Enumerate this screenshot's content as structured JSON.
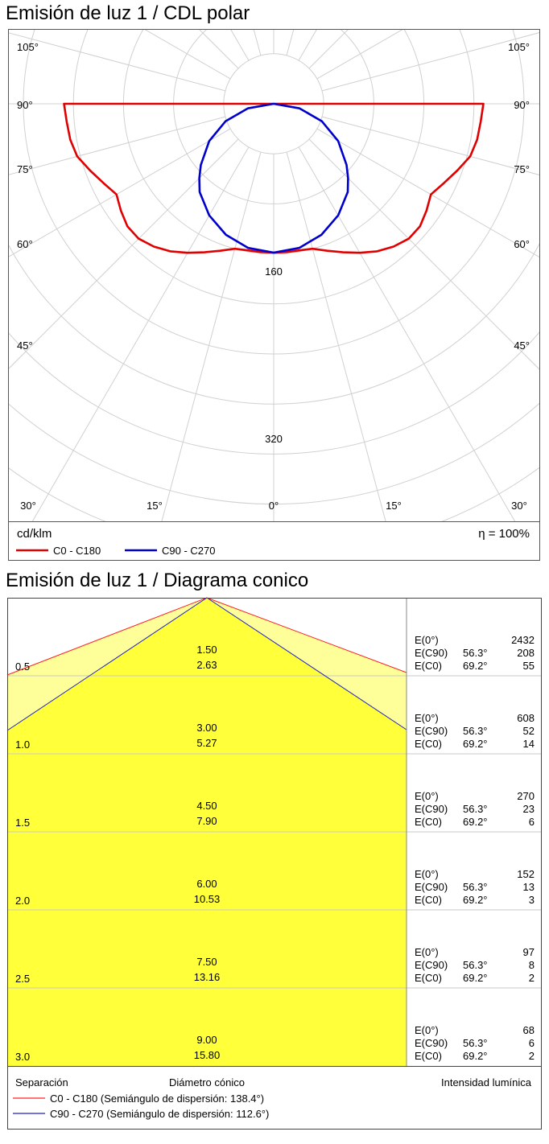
{
  "polar": {
    "title": "Emisión de luz 1 / CDL polar",
    "unit": "cd/klm",
    "efficiency": "η = 100%",
    "angle_labels": [
      "105°",
      "90°",
      "75°",
      "60°",
      "45°",
      "30°",
      "15°",
      "0°"
    ],
    "ring_labels": [
      "160",
      "320"
    ],
    "legend": [
      {
        "label": "C0 - C180",
        "color": "#e00000"
      },
      {
        "label": "C90 - C270",
        "color": "#0000cc"
      }
    ]
  },
  "cone": {
    "title": "Emisión de luz 1 / Diagrama conico",
    "footer": {
      "col1": "Separación",
      "col2": "Diámetro cónico",
      "col3": "Intensidad lumínica"
    },
    "legend": [
      {
        "label": "C0 - C180 (Semiángulo de dispersión: 138.4°)",
        "color": "#ff2020"
      },
      {
        "label": "C90 - C270 (Semiángulo de dispersión: 112.6°)",
        "color": "#2020cc"
      }
    ],
    "rows": [
      {
        "sep": "0.5",
        "d1": "1.50",
        "d2": "2.63",
        "e0_label": "E(0°)",
        "e0": "2432",
        "e90_label": "E(C90)",
        "e90_ang": "56.3°",
        "e90": "208",
        "ec0_label": "E(C0)",
        "ec0_ang": "69.2°",
        "ec0": "55"
      },
      {
        "sep": "1.0",
        "d1": "3.00",
        "d2": "5.27",
        "e0_label": "E(0°)",
        "e0": "608",
        "e90_label": "E(C90)",
        "e90_ang": "56.3°",
        "e90": "52",
        "ec0_label": "E(C0)",
        "ec0_ang": "69.2°",
        "ec0": "14"
      },
      {
        "sep": "1.5",
        "d1": "4.50",
        "d2": "7.90",
        "e0_label": "E(0°)",
        "e0": "270",
        "e90_label": "E(C90)",
        "e90_ang": "56.3°",
        "e90": "23",
        "ec0_label": "E(C0)",
        "ec0_ang": "69.2°",
        "ec0": "6"
      },
      {
        "sep": "2.0",
        "d1": "6.00",
        "d2": "10.53",
        "e0_label": "E(0°)",
        "e0": "152",
        "e90_label": "E(C90)",
        "e90_ang": "56.3°",
        "e90": "13",
        "ec0_label": "E(C0)",
        "ec0_ang": "69.2°",
        "ec0": "3"
      },
      {
        "sep": "2.5",
        "d1": "7.50",
        "d2": "13.16",
        "e0_label": "E(0°)",
        "e0": "97",
        "e90_label": "E(C90)",
        "e90_ang": "56.3°",
        "e90": "8",
        "ec0_label": "E(C0)",
        "ec0_ang": "69.2°",
        "ec0": "2"
      },
      {
        "sep": "3.0",
        "d1": "9.00",
        "d2": "15.80",
        "e0_label": "E(0°)",
        "e0": "68",
        "e90_label": "E(C90)",
        "e90_ang": "56.3°",
        "e90": "6",
        "ec0_label": "E(C0)",
        "ec0_ang": "69.2°",
        "ec0": "2"
      }
    ]
  },
  "chart_data": [
    {
      "type": "polar",
      "title": "Emisión de luz 1 / CDL polar",
      "r_unit": "cd/klm",
      "r_ticks": [
        160,
        320
      ],
      "r_max": 400,
      "angle_ticks_deg": [
        0,
        15,
        30,
        45,
        60,
        75,
        90,
        105
      ],
      "series": [
        {
          "name": "C0 - C180",
          "color": "#e00000",
          "angles_deg": [
            0,
            5,
            10,
            15,
            20,
            25,
            30,
            35,
            40,
            45,
            50,
            55,
            60,
            65,
            70,
            75,
            80,
            85,
            90
          ],
          "values": [
            238,
            238,
            238,
            240,
            250,
            262,
            275,
            288,
            298,
            305,
            305,
            298,
            290,
            300,
            312,
            325,
            330,
            332,
            335
          ]
        },
        {
          "name": "C90 - C270",
          "color": "#0000cc",
          "angles_deg": [
            0,
            10,
            20,
            30,
            40,
            45,
            50,
            60,
            70,
            80,
            90
          ],
          "values": [
            238,
            234,
            223,
            206,
            184,
            168,
            152,
            119,
            82,
            42,
            0
          ]
        }
      ]
    },
    {
      "type": "table",
      "title": "Emisión de luz 1 / Diagrama conico",
      "columns": [
        "Separación",
        "Diámetro cónico C90",
        "Diámetro cónico C0",
        "E(0°)",
        "E(C90) 56.3°",
        "E(C0) 69.2°"
      ],
      "rows": [
        [
          "0.5",
          "1.50",
          "2.63",
          2432,
          208,
          55
        ],
        [
          "1.0",
          "3.00",
          "5.27",
          608,
          52,
          14
        ],
        [
          "1.5",
          "4.50",
          "7.90",
          270,
          23,
          6
        ],
        [
          "2.0",
          "6.00",
          "10.53",
          152,
          13,
          3
        ],
        [
          "2.5",
          "7.50",
          "13.16",
          97,
          8,
          2
        ],
        [
          "3.0",
          "9.00",
          "15.80",
          68,
          6,
          2
        ]
      ]
    }
  ]
}
